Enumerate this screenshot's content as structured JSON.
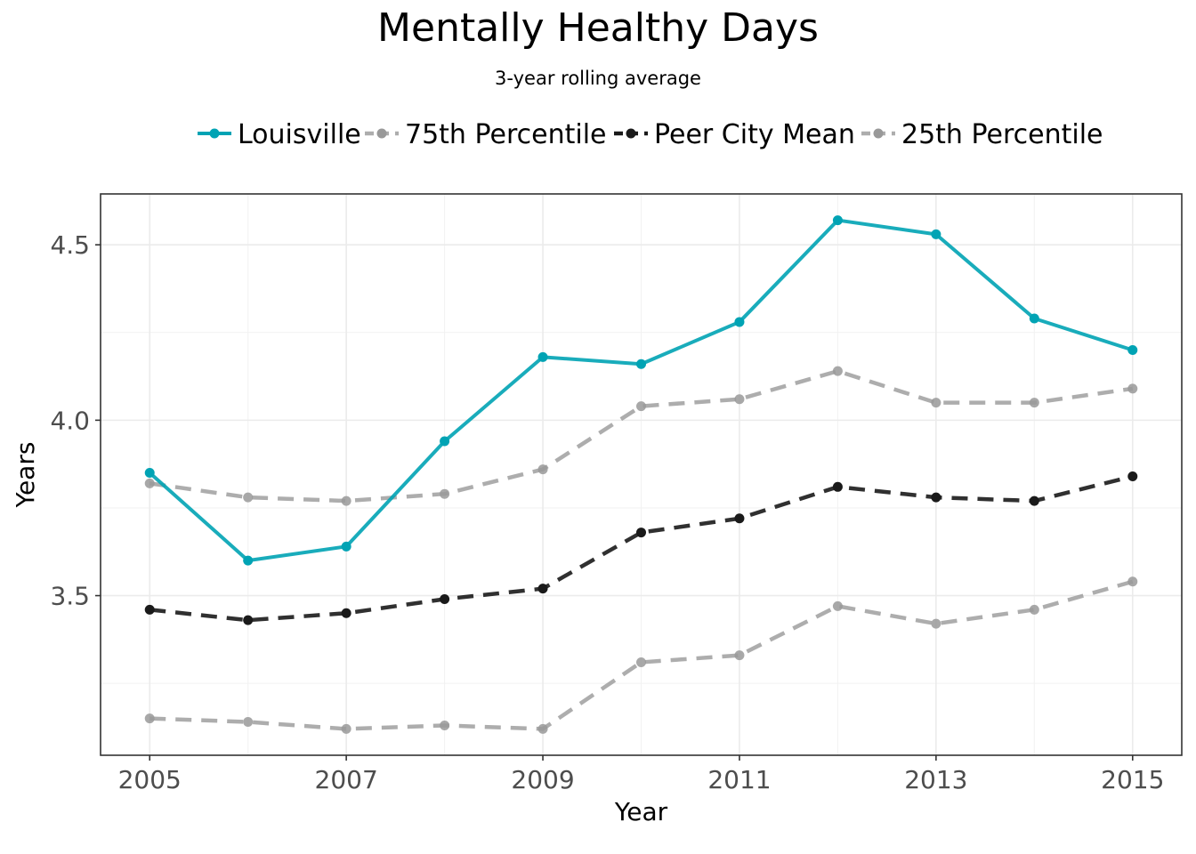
{
  "chart_data": {
    "type": "line",
    "title": "Mentally Healthy Days",
    "subtitle": "3-year rolling average",
    "xlabel": "Year",
    "ylabel": "Years",
    "x": [
      2005,
      2006,
      2007,
      2008,
      2009,
      2010,
      2011,
      2012,
      2013,
      2014,
      2015
    ],
    "xticks": [
      2005,
      2007,
      2009,
      2011,
      2013,
      2015
    ],
    "xlim": [
      2004.5,
      2015.5
    ],
    "yticks": [
      3.5,
      4.0,
      4.5
    ],
    "ytick_labels": [
      "3.5",
      "4.0",
      "4.5"
    ],
    "ylim": [
      3.045,
      4.645
    ],
    "grid": true,
    "legend_position": "top",
    "series": [
      {
        "name": "Louisville",
        "color": "#00a3b4",
        "style": "solid",
        "values": [
          3.85,
          3.6,
          3.64,
          3.94,
          4.18,
          4.16,
          4.28,
          4.57,
          4.53,
          4.29,
          4.2
        ]
      },
      {
        "name": "75th Percentile",
        "color": "#999999",
        "style": "dashed",
        "values": [
          3.82,
          3.78,
          3.77,
          3.79,
          3.86,
          4.04,
          4.06,
          4.14,
          4.05,
          4.05,
          4.09
        ]
      },
      {
        "name": "Peer City Mean",
        "color": "#1a1a1a",
        "style": "dashed",
        "values": [
          3.46,
          3.43,
          3.45,
          3.49,
          3.52,
          3.68,
          3.72,
          3.81,
          3.78,
          3.77,
          3.84
        ]
      },
      {
        "name": "25th Percentile",
        "color": "#999999",
        "style": "dashed",
        "values": [
          3.15,
          3.14,
          3.12,
          3.13,
          3.12,
          3.31,
          3.33,
          3.47,
          3.42,
          3.46,
          3.54
        ]
      }
    ]
  }
}
